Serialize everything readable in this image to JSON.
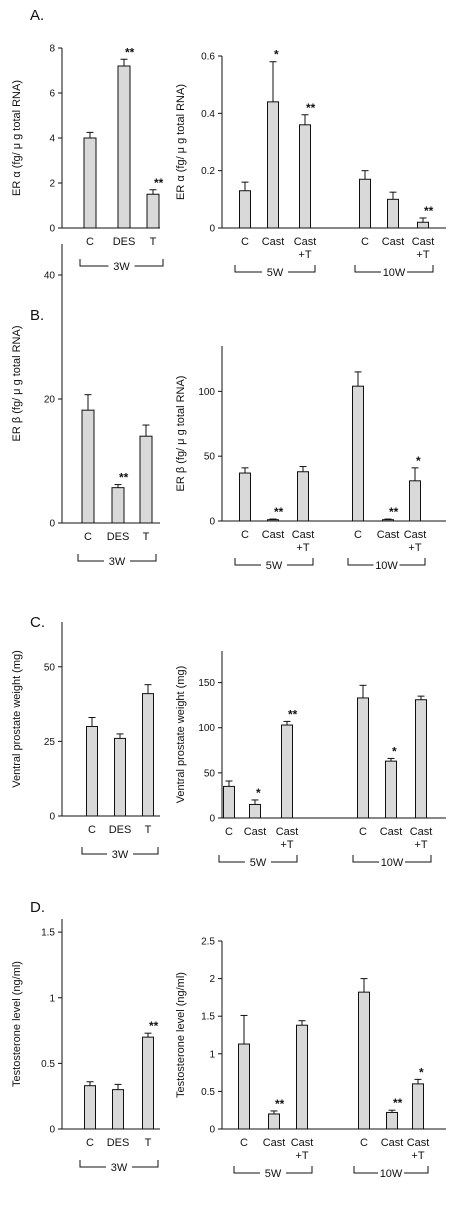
{
  "style": {
    "bar_fill": "#d9d9d9",
    "ink": "#111111"
  },
  "panel_labels": [
    "A.",
    "B.",
    "C.",
    "D."
  ],
  "chart_data": [
    {
      "id": "A-left",
      "type": "bar",
      "panel": "A.",
      "ylabel": "ER α  (fg/ μ g total RNA)",
      "ylim": [
        0,
        8
      ],
      "yticks": [
        0,
        2,
        4,
        6,
        8
      ],
      "categories": [
        "C",
        "DES",
        "T"
      ],
      "values": [
        4.0,
        7.2,
        1.5
      ],
      "errors": [
        0.25,
        0.3,
        0.2
      ],
      "annotations": [
        "",
        "**",
        "**"
      ],
      "groups": [
        {
          "label": "3W",
          "from": 0,
          "to": 2
        }
      ]
    },
    {
      "id": "A-right",
      "type": "bar",
      "ylabel": "ER α  (fg/ μ g total RNA)",
      "ylim": [
        0,
        0.6
      ],
      "yticks": [
        0,
        0.2,
        0.4,
        0.6
      ],
      "categories": [
        "C",
        "Cast",
        "Cast\n+T",
        "C",
        "Cast",
        "Cast\n+T"
      ],
      "values": [
        0.13,
        0.44,
        0.36,
        0.17,
        0.1,
        0.02
      ],
      "errors": [
        0.03,
        0.14,
        0.035,
        0.03,
        0.025,
        0.015
      ],
      "annotations": [
        "",
        "*",
        "**",
        "",
        "",
        "**"
      ],
      "groups": [
        {
          "label": "5W",
          "from": 0,
          "to": 2
        },
        {
          "label": "10W",
          "from": 3,
          "to": 5
        }
      ]
    },
    {
      "id": "B-left",
      "type": "bar",
      "panel": "B.",
      "ylabel": "ER β  (fg/ μ g total RNA)",
      "ylim": [
        0,
        45
      ],
      "yticks": [
        0,
        20,
        40
      ],
      "categories": [
        "C",
        "DES",
        "T"
      ],
      "values": [
        18.2,
        5.7,
        14.0
      ],
      "errors": [
        2.5,
        0.5,
        1.8
      ],
      "annotations": [
        "",
        "**",
        ""
      ],
      "groups": [
        {
          "label": "3W",
          "from": 0,
          "to": 2
        }
      ]
    },
    {
      "id": "B-right",
      "type": "bar",
      "ylabel": "ER β  (fg/ μ g total RNA)",
      "ylim": [
        0,
        135
      ],
      "yticks": [
        0,
        50,
        100
      ],
      "categories": [
        "C",
        "Cast",
        "Cast\n+T",
        "C",
        "Cast",
        "Cast\n+T"
      ],
      "values": [
        37,
        1,
        38,
        104,
        1,
        31
      ],
      "errors": [
        4,
        0.5,
        4,
        11,
        0.5,
        10
      ],
      "annotations": [
        "",
        "**",
        "",
        "",
        "**",
        "*"
      ],
      "groups": [
        {
          "label": "5W",
          "from": 0,
          "to": 2
        },
        {
          "label": "10W",
          "from": 3,
          "to": 5
        }
      ]
    },
    {
      "id": "C-left",
      "type": "bar",
      "panel": "C.",
      "ylabel": "Ventral prostate weight (mg)",
      "ylim": [
        0,
        65
      ],
      "yticks": [
        0,
        25,
        50
      ],
      "categories": [
        "C",
        "DES",
        "T"
      ],
      "values": [
        30,
        26,
        41
      ],
      "errors": [
        3,
        1.5,
        3
      ],
      "annotations": [
        "",
        "",
        ""
      ],
      "groups": [
        {
          "label": "3W",
          "from": 0,
          "to": 2
        }
      ]
    },
    {
      "id": "C-right",
      "type": "bar",
      "ylabel": "Ventral prostate weight (mg)",
      "ylim": [
        0,
        185
      ],
      "yticks": [
        0,
        50,
        100,
        150
      ],
      "categories": [
        "C",
        "Cast",
        "Cast\n+T",
        "C",
        "Cast",
        "Cast\n+T"
      ],
      "values": [
        35,
        15,
        103,
        133,
        63,
        131
      ],
      "errors": [
        6,
        5,
        4,
        14,
        3,
        4
      ],
      "annotations": [
        "",
        "*",
        "**",
        "",
        "*",
        ""
      ],
      "groups": [
        {
          "label": "5W",
          "from": 0,
          "to": 2
        },
        {
          "label": "10W",
          "from": 3,
          "to": 5
        }
      ]
    },
    {
      "id": "D-left",
      "type": "bar",
      "panel": "D.",
      "ylabel": "Testosterone level (ng/ml)",
      "ylim": [
        0,
        1.6
      ],
      "yticks": [
        0,
        0.5,
        1,
        1.5
      ],
      "categories": [
        "C",
        "DES",
        "T"
      ],
      "values": [
        0.33,
        0.3,
        0.7
      ],
      "errors": [
        0.03,
        0.04,
        0.03
      ],
      "annotations": [
        "",
        "",
        "**"
      ],
      "groups": [
        {
          "label": "3W",
          "from": 0,
          "to": 2
        }
      ]
    },
    {
      "id": "D-right",
      "type": "bar",
      "ylabel": "Testosterone level (ng/ml)",
      "ylim": [
        0,
        2.5
      ],
      "yticks": [
        0,
        0.5,
        1,
        1.5,
        2,
        2.5
      ],
      "categories": [
        "C",
        "Cast",
        "Cast\n+T",
        "C",
        "Cast",
        "Cast\n+T"
      ],
      "values": [
        1.13,
        0.2,
        1.38,
        1.82,
        0.22,
        0.6
      ],
      "errors": [
        0.38,
        0.04,
        0.06,
        0.18,
        0.03,
        0.06
      ],
      "annotations": [
        "",
        "**",
        "",
        "",
        "**",
        "*"
      ],
      "groups": [
        {
          "label": "5W",
          "from": 0,
          "to": 2
        },
        {
          "label": "10W",
          "from": 3,
          "to": 5
        }
      ]
    }
  ]
}
